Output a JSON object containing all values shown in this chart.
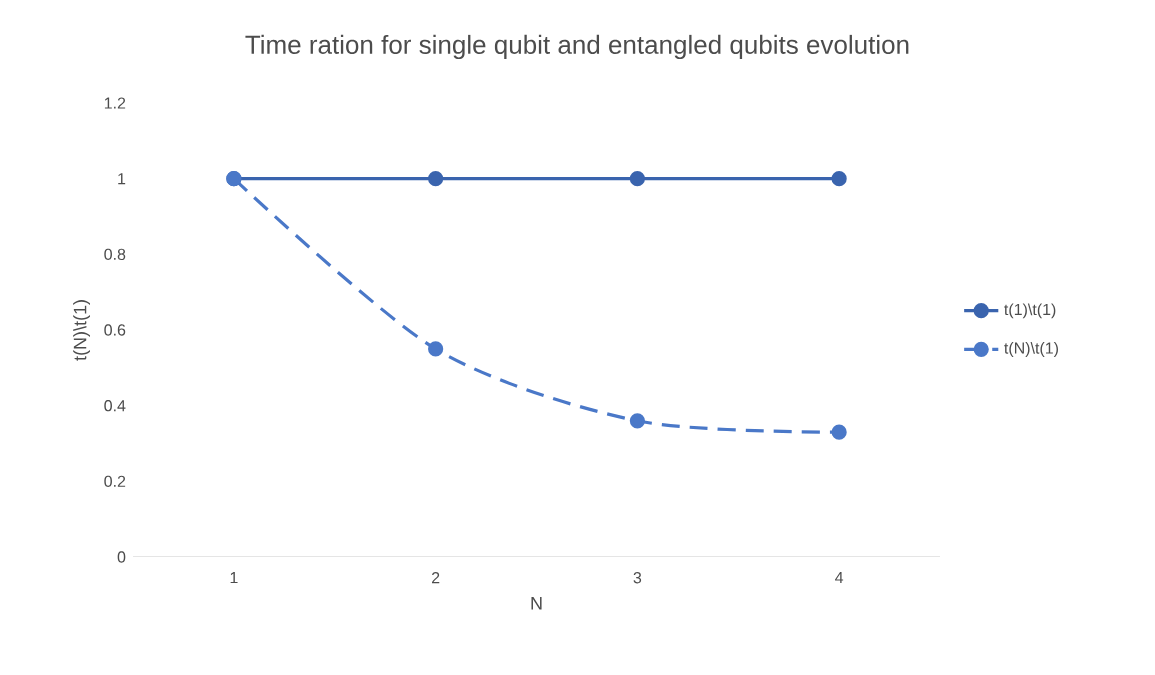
{
  "chart_data": {
    "type": "line",
    "title": "Time ration for single qubit and entangled qubits evolution",
    "xlabel": "N",
    "ylabel": "t(N)\\t(1)",
    "categories": [
      "1",
      "2",
      "3",
      "4"
    ],
    "series": [
      {
        "name": "t(1)\\t(1)",
        "color": "#3a64ae",
        "values": [
          1,
          1,
          1,
          1
        ],
        "line_style": "solid"
      },
      {
        "name": "t(N)\\t(1)",
        "color": "#4a78c8",
        "values": [
          1,
          0.55,
          0.36,
          0.33
        ],
        "line_style": "dashed"
      }
    ],
    "ylim": [
      0,
      1.2
    ],
    "yticks": [
      0,
      0.2,
      0.4,
      0.6,
      0.8,
      1,
      1.2
    ],
    "grid": false,
    "legend": "right",
    "marker": "circle"
  }
}
